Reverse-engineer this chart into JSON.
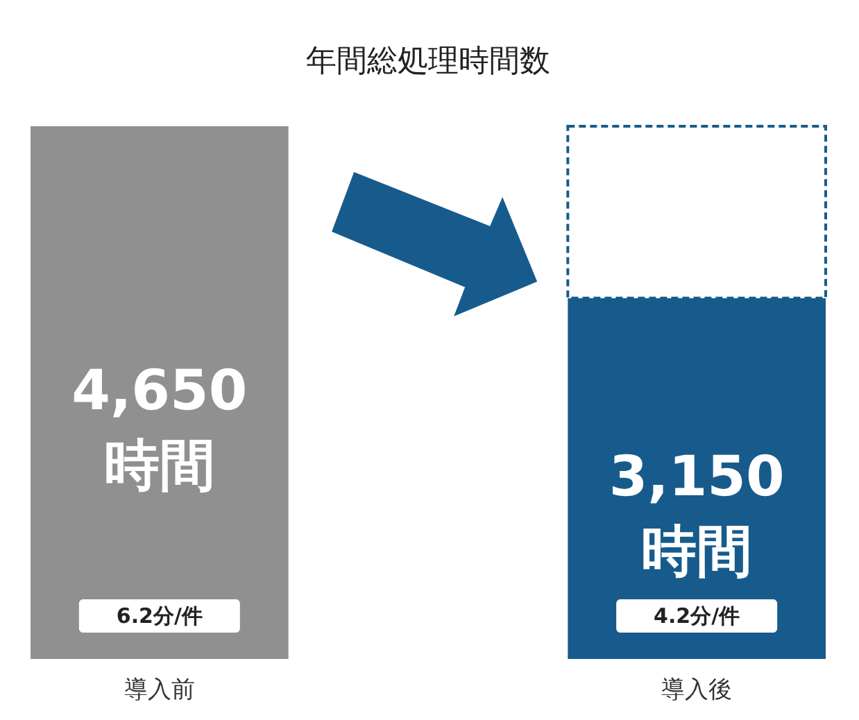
{
  "chart_data": {
    "type": "bar",
    "title": "年間総処理時間数",
    "categories": [
      "導入前",
      "導入後"
    ],
    "stacked": true,
    "tick_labels": "x",
    "ylim": [
      0,
      4650
    ],
    "series": [
      {
        "colors": [
          "#909090",
          "#175b8c"
        ],
        "values": [
          4650,
          3150
        ],
        "value_labels": [
          "4,650\n時間",
          "3,150\n時間"
        ]
      },
      {
        "color": "#175b8c",
        "values": [
          null,
          1500
        ],
        "line_style": "dashed"
      }
    ],
    "annotations": [
      "6.2分/件",
      "4.2分/件"
    ]
  }
}
